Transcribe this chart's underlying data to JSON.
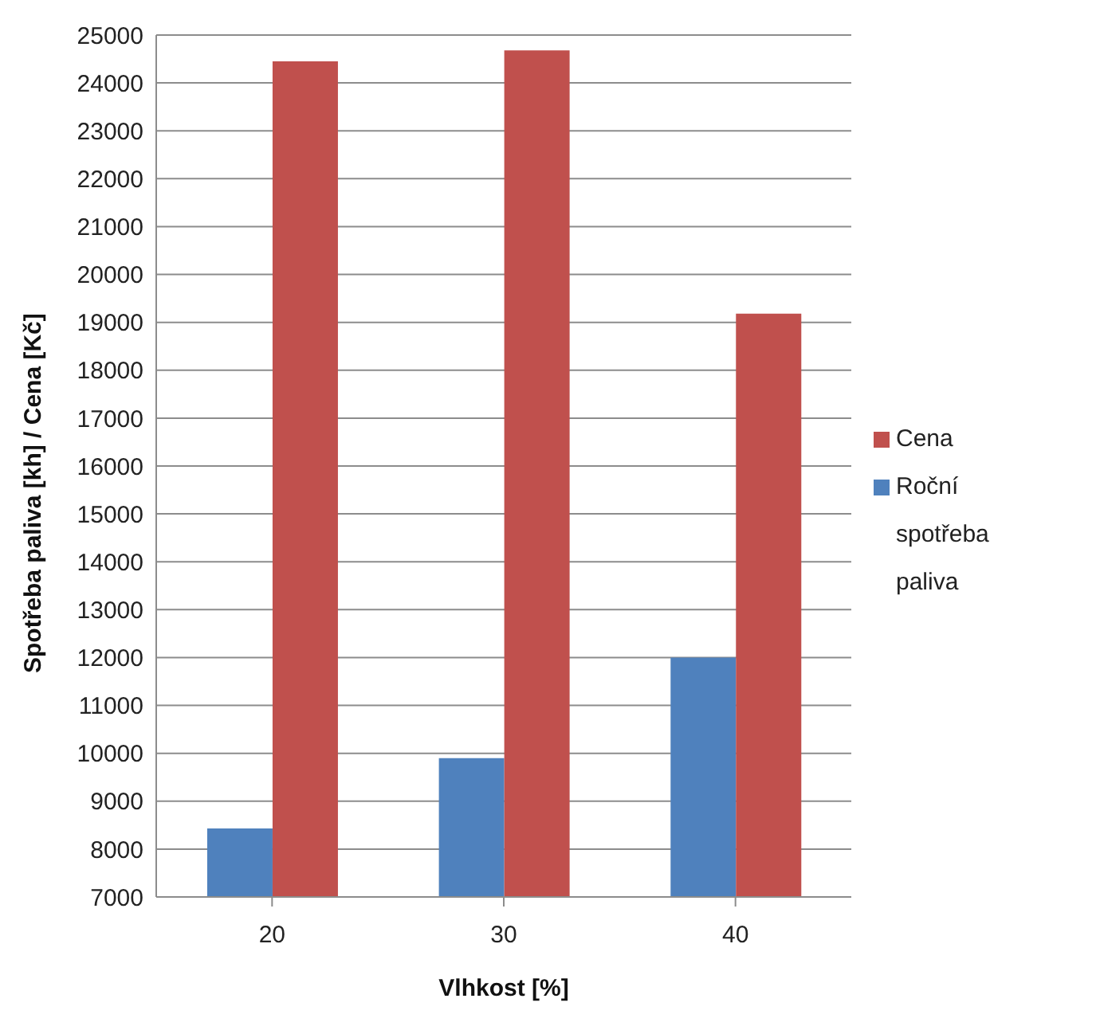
{
  "chart_data": {
    "type": "bar",
    "xlabel": "Vlhkost [%]",
    "ylabel": "Spotřeba paliva [kh] / Cena [Kč]",
    "categories": [
      "20",
      "30",
      "40"
    ],
    "series": [
      {
        "name": "Roční spotřeba paliva",
        "color": "#4f81bd",
        "values": [
          8430,
          9900,
          12000
        ]
      },
      {
        "name": "Cena",
        "color": "#c0504d",
        "values": [
          24450,
          24680,
          19180
        ]
      }
    ],
    "ylim": [
      7000,
      25000
    ],
    "yticks": [
      7000,
      8000,
      9000,
      10000,
      11000,
      12000,
      13000,
      14000,
      15000,
      16000,
      17000,
      18000,
      19000,
      20000,
      21000,
      22000,
      23000,
      24000,
      25000
    ],
    "grid": "y",
    "legend": "right"
  }
}
